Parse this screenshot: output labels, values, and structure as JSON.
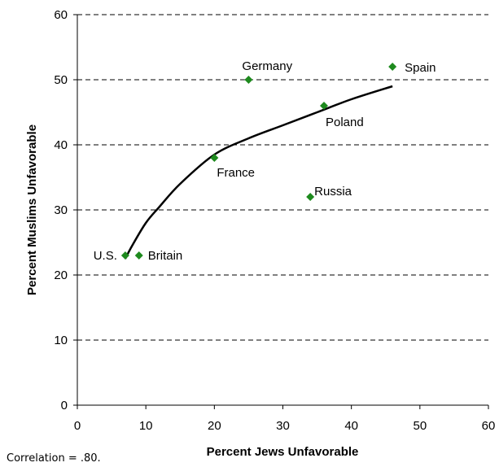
{
  "chart_data": {
    "type": "scatter",
    "xlabel": "Percent Jews Unfavorable",
    "ylabel": "Percent Muslims Unfavorable",
    "xlim": [
      0,
      60
    ],
    "ylim": [
      0,
      60
    ],
    "xticks": [
      0,
      10,
      20,
      30,
      40,
      50,
      60
    ],
    "yticks": [
      0,
      10,
      20,
      30,
      40,
      50,
      60
    ],
    "grid": "horizontal dashed",
    "marker_color": "#1e8a1e",
    "trend_color": "#000000",
    "points": [
      {
        "label": "U.S.",
        "x": 7,
        "y": 23
      },
      {
        "label": "Britain",
        "x": 9,
        "y": 23
      },
      {
        "label": "France",
        "x": 20,
        "y": 38
      },
      {
        "label": "Germany",
        "x": 25,
        "y": 50
      },
      {
        "label": "Russia",
        "x": 34,
        "y": 32
      },
      {
        "label": "Poland",
        "x": 36,
        "y": 46
      },
      {
        "label": "Spain",
        "x": 46,
        "y": 52
      }
    ],
    "trendline": [
      {
        "x": 7,
        "y": 22.5
      },
      {
        "x": 8,
        "y": 24.5
      },
      {
        "x": 10,
        "y": 28.0
      },
      {
        "x": 12,
        "y": 30.5
      },
      {
        "x": 15,
        "y": 34.0
      },
      {
        "x": 20,
        "y": 38.5
      },
      {
        "x": 25,
        "y": 41.0
      },
      {
        "x": 30,
        "y": 43.0
      },
      {
        "x": 35,
        "y": 45.0
      },
      {
        "x": 40,
        "y": 47.0
      },
      {
        "x": 46,
        "y": 49.0
      }
    ],
    "annotation": "Correlation = .80."
  }
}
